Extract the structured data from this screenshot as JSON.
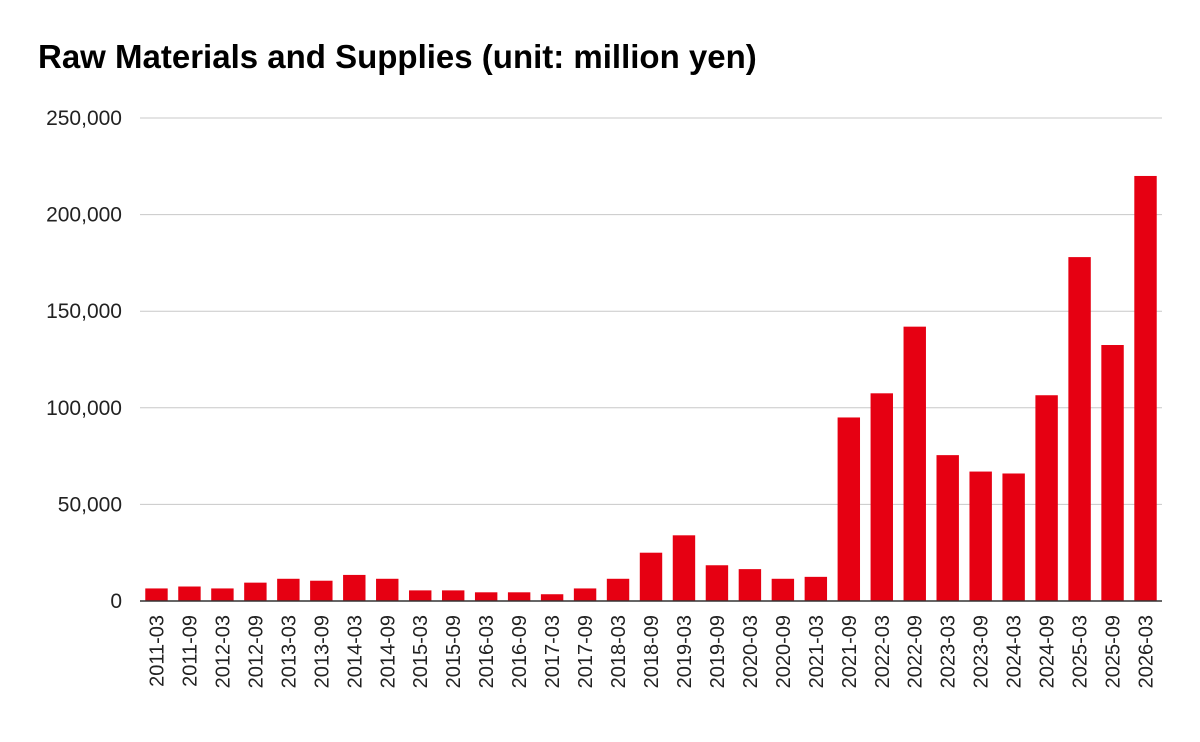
{
  "chart_data": {
    "type": "bar",
    "title": "Raw Materials and Supplies (unit: million yen)",
    "xlabel": "",
    "ylabel": "",
    "categories": [
      "2011-03",
      "2011-09",
      "2012-03",
      "2012-09",
      "2013-03",
      "2013-09",
      "2014-03",
      "2014-09",
      "2015-03",
      "2015-09",
      "2016-03",
      "2016-09",
      "2017-03",
      "2017-09",
      "2018-03",
      "2018-09",
      "2019-03",
      "2019-09",
      "2020-03",
      "2020-09",
      "2021-03",
      "2021-09",
      "2022-03",
      "2022-09",
      "2023-03",
      "2023-09",
      "2024-03",
      "2024-09",
      "2025-03",
      "2025-09",
      "2026-03"
    ],
    "values": [
      6500,
      7500,
      6500,
      9500,
      11500,
      10500,
      13500,
      11500,
      5500,
      5500,
      4500,
      4500,
      3500,
      6500,
      11500,
      25000,
      34000,
      18500,
      16500,
      11500,
      12500,
      95000,
      107500,
      142000,
      75500,
      67000,
      66000,
      106500,
      178000,
      132500,
      220000
    ],
    "ylim": [
      0,
      250000
    ],
    "yticks": [
      0,
      50000,
      100000,
      150000,
      200000,
      250000
    ],
    "ytick_labels": [
      "0",
      "50,000",
      "100,000",
      "150,000",
      "200,000",
      "250,000"
    ],
    "grid": true,
    "legend": "none",
    "bar_color": "#e60012"
  }
}
